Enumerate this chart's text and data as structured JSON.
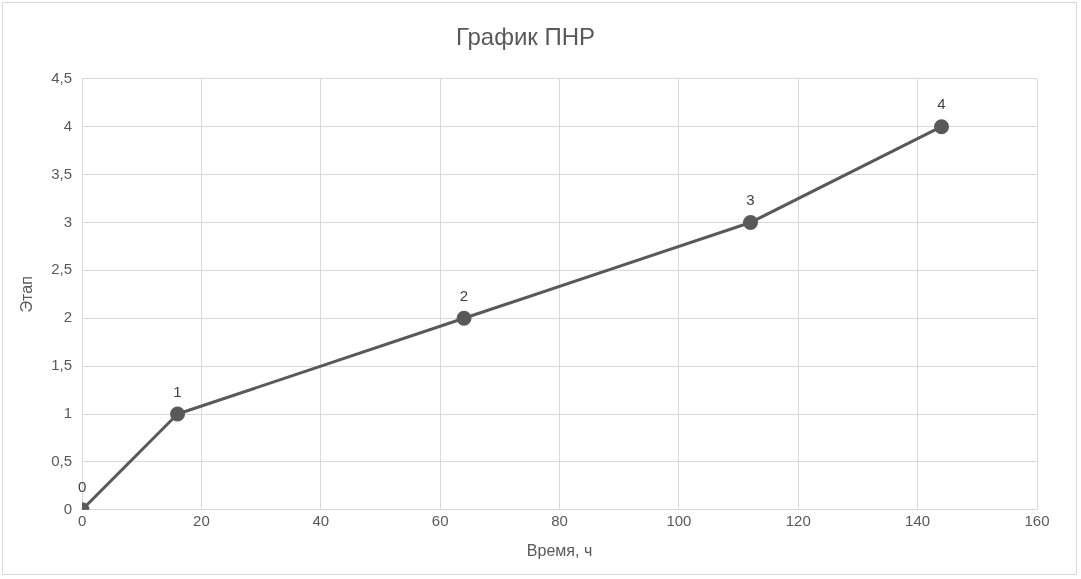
{
  "chart_data": {
    "type": "line",
    "title": "График ПНР",
    "xlabel": "Время, ч",
    "ylabel": "Этап",
    "x": [
      0,
      16,
      64,
      112,
      144
    ],
    "series": [
      {
        "color": "#595959",
        "values": [
          0,
          1,
          2,
          3,
          4
        ]
      }
    ],
    "xlim": [
      0,
      160
    ],
    "xticks": [
      0,
      20,
      40,
      60,
      80,
      100,
      120,
      140,
      160
    ],
    "ylim": [
      0,
      4.5
    ],
    "yticks": [
      0,
      {
        "value": 0.5,
        "label": "0,5"
      },
      1,
      {
        "value": 1.5,
        "label": "1,5"
      },
      2,
      {
        "value": 2.5,
        "label": "2,5"
      },
      3,
      {
        "value": 3.5,
        "label": "3,5"
      },
      4,
      {
        "value": 4.5,
        "label": "4,5"
      }
    ],
    "grid": true,
    "legend": false,
    "marker": "circle",
    "line_style": "solid",
    "data_labels": true
  }
}
